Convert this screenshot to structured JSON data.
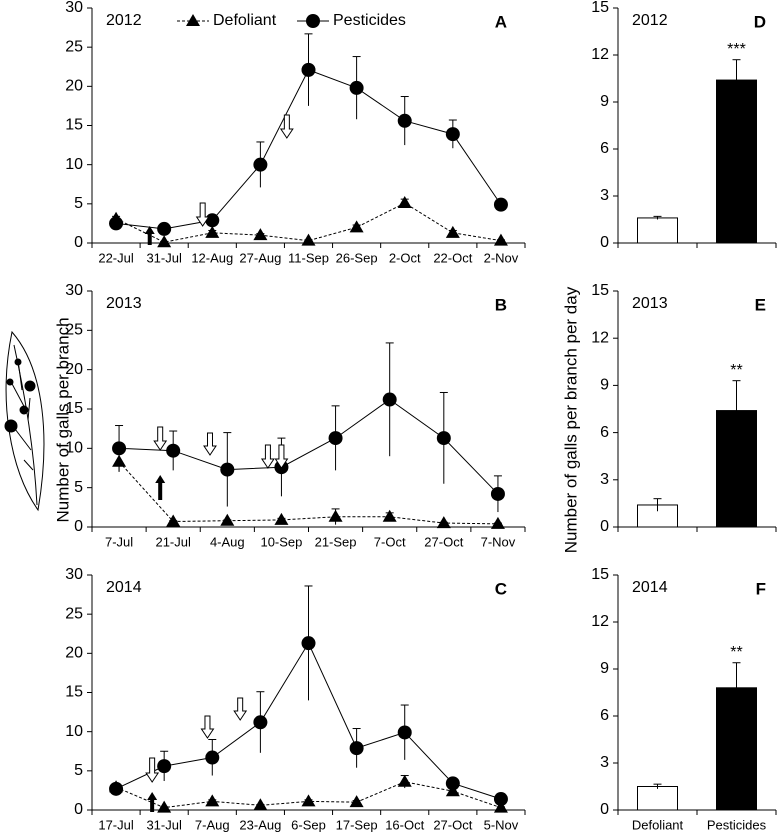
{
  "chart_data": [
    {
      "type": "line",
      "title": "2012",
      "label": "A",
      "ylabel": "Number of galls per branch",
      "legend": "top",
      "categories": [
        "22-Jul",
        "31-Jul",
        "12-Aug",
        "27-Aug",
        "11-Sep",
        "26-Sep",
        "2-Oct",
        "22-Oct",
        "2-Nov"
      ],
      "series": [
        {
          "name": "Defoliant",
          "marker": "triangle",
          "dash": true,
          "color": "#000000",
          "values": [
            3.1,
            0.1,
            1.3,
            1.0,
            0.3,
            2.0,
            5.1,
            1.3,
            0.3
          ],
          "errors": [
            0.3,
            0.1,
            0.3,
            0.2,
            0.1,
            0.3,
            0.5,
            0.3,
            0.1
          ]
        },
        {
          "name": "Pesticides",
          "marker": "circle",
          "dash": false,
          "color": "#000000",
          "values": [
            2.5,
            1.8,
            2.9,
            10.0,
            22.1,
            19.8,
            15.6,
            13.9,
            4.9
          ],
          "errors": [
            0.5,
            0.3,
            0.4,
            2.9,
            4.6,
            4.0,
            3.1,
            1.8,
            0.3
          ]
        }
      ],
      "ylim": [
        0,
        30
      ],
      "yticks": [
        0,
        5,
        10,
        15,
        20,
        25,
        30
      ]
    },
    {
      "type": "line",
      "title": "2013",
      "label": "B",
      "categories": [
        "7-Jul",
        "21-Jul",
        "4-Aug",
        "10-Sep",
        "21-Sep",
        "7-Oct",
        "27-Oct",
        "7-Nov"
      ],
      "series": [
        {
          "marker": "triangle",
          "dash": true,
          "color": "#000000",
          "values": [
            8.3,
            0.7,
            0.8,
            0.9,
            1.3,
            1.3,
            0.5,
            0.4
          ],
          "errors": [
            1.3,
            0.1,
            0.1,
            0.2,
            1.0,
            0.5,
            0.1,
            0.1
          ]
        },
        {
          "marker": "circle",
          "dash": false,
          "color": "#000000",
          "values": [
            10.0,
            9.7,
            7.3,
            7.6,
            11.3,
            16.2,
            11.3,
            4.2
          ],
          "errors": [
            2.9,
            2.5,
            4.7,
            3.7,
            4.1,
            7.2,
            5.8,
            2.3
          ]
        }
      ],
      "ylim": [
        0,
        30
      ],
      "yticks": [
        0,
        5,
        10,
        15,
        20,
        25,
        30
      ]
    },
    {
      "type": "line",
      "title": "2014",
      "label": "C",
      "categories": [
        "17-Jul",
        "31-Jul",
        "7-Aug",
        "23-Aug",
        "6-Sep",
        "17-Sep",
        "16-Oct",
        "27-Oct",
        "5-Nov"
      ],
      "series": [
        {
          "marker": "triangle",
          "dash": true,
          "color": "#000000",
          "values": [
            2.9,
            0.3,
            1.1,
            0.6,
            1.1,
            1.0,
            3.6,
            2.4,
            0.3
          ],
          "errors": [
            0.3,
            0.1,
            0.2,
            0.1,
            0.2,
            0.2,
            0.8,
            0.4,
            0.1
          ]
        },
        {
          "marker": "circle",
          "dash": false,
          "color": "#000000",
          "values": [
            2.7,
            5.6,
            6.7,
            11.2,
            21.3,
            7.9,
            9.9,
            3.4,
            1.4
          ],
          "errors": [
            0.3,
            1.9,
            2.3,
            3.9,
            7.3,
            2.5,
            3.5,
            0.5,
            0.4
          ]
        }
      ],
      "ylim": [
        0,
        30
      ],
      "yticks": [
        0,
        5,
        10,
        15,
        20,
        25,
        30
      ]
    },
    {
      "type": "bar",
      "title": "2012",
      "label": "D",
      "ylabel": "Number of galls per branch per day",
      "categories": [
        null,
        null
      ],
      "values": [
        1.6,
        10.4
      ],
      "errors": [
        0.1,
        1.3
      ],
      "colors": [
        "#ffffff",
        "#000000"
      ],
      "annotation": "***",
      "ylim": [
        0,
        15
      ],
      "yticks": [
        0,
        3,
        6,
        9,
        12,
        15
      ]
    },
    {
      "type": "bar",
      "title": "2013",
      "label": "E",
      "categories": [
        null,
        null
      ],
      "values": [
        1.4,
        7.4
      ],
      "errors": [
        0.4,
        1.9
      ],
      "colors": [
        "#ffffff",
        "#000000"
      ],
      "annotation": "**",
      "ylim": [
        0,
        15
      ],
      "yticks": [
        0,
        3,
        6,
        9,
        12,
        15
      ]
    },
    {
      "type": "bar",
      "title": "2014",
      "label": "F",
      "categories": [
        "Defoliant",
        "Pesticides"
      ],
      "values": [
        1.5,
        7.8
      ],
      "errors": [
        0.15,
        1.6
      ],
      "colors": [
        "#ffffff",
        "#000000"
      ],
      "annotation": "**",
      "ylim": [
        0,
        15
      ],
      "yticks": [
        0,
        3,
        6,
        9,
        12,
        15
      ]
    }
  ]
}
